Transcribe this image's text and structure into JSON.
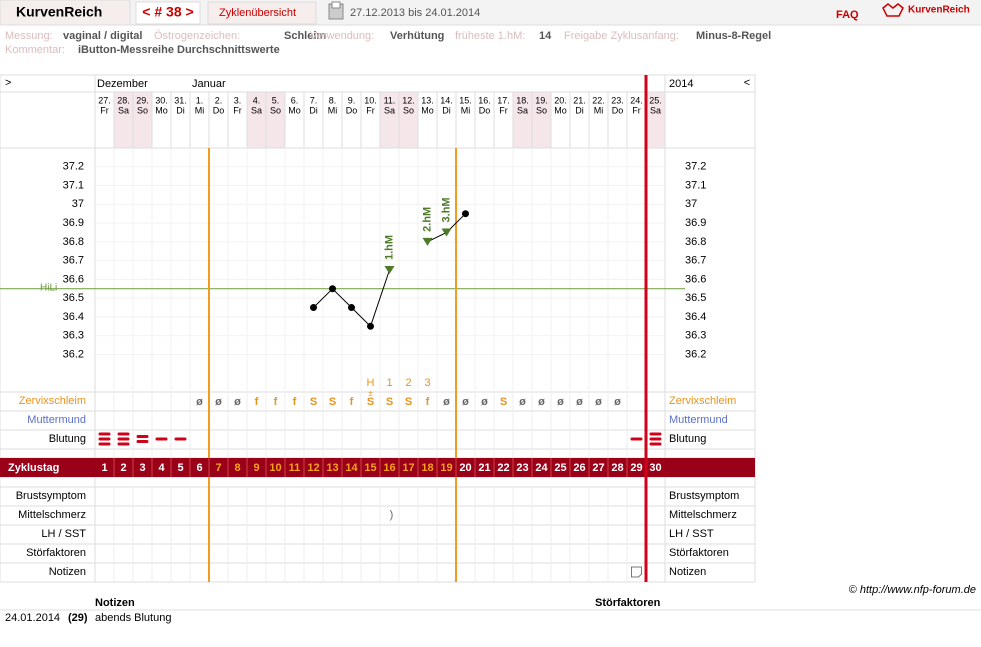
{
  "header": {
    "brand": "KurvenReich",
    "cycle_nav": "< # 38 >",
    "overview": "Zyklenübersicht",
    "date_range": "27.12.2013 bis 24.01.2014",
    "faq": "FAQ",
    "logo": "KurvenReich"
  },
  "info": [
    [
      {
        "label": "Messung:",
        "value": "vaginal / digital"
      },
      {
        "label": "Östrogenzeichen:",
        "value": "Schleim"
      },
      {
        "label": "Verwendung:",
        "value": "Verhütung"
      },
      {
        "label": "früheste 1.hM:",
        "value": 14
      },
      {
        "label": "Freigabe Zyklusanfang:",
        "value": "Minus-8-Regel"
      }
    ],
    [
      {
        "label": "Kommentar:",
        "value": "iButton-Messreihe Durchschnittswerte"
      }
    ]
  ],
  "grid": {
    "nav_left": ">",
    "nav_right": "<",
    "year": "2014",
    "months": [
      {
        "label": "Dezember",
        "day": 1
      },
      {
        "label": "Januar",
        "day": 6
      }
    ],
    "dates": [
      "27.",
      "28.",
      "29.",
      "30.",
      "31.",
      "1.",
      "2.",
      "3.",
      "4.",
      "5.",
      "6.",
      "7.",
      "8.",
      "9.",
      "10.",
      "11.",
      "12.",
      "13.",
      "14.",
      "15.",
      "16.",
      "17.",
      "18.",
      "19.",
      "20.",
      "21.",
      "22.",
      "23.",
      "24.",
      "25."
    ],
    "weekdays": [
      "Fr",
      "Sa",
      "So",
      "Mo",
      "Di",
      "Mi",
      "Do",
      "Fr",
      "Sa",
      "So",
      "Mo",
      "Di",
      "Mi",
      "Do",
      "Fr",
      "Sa",
      "So",
      "Mo",
      "Di",
      "Mi",
      "Do",
      "Fr",
      "Sa",
      "So",
      "Mo",
      "Di",
      "Mi",
      "Do",
      "Fr",
      "Sa"
    ]
  },
  "row_labels": {
    "zervix": "Zervixschleim",
    "muttermund": "Muttermund",
    "blutung": "Blutung",
    "zyklustag": "Zyklustag",
    "brust": "Brustsymptom",
    "mittelschmerz": "Mittelschmerz",
    "lh": "LH / SST",
    "stoer": "Störfaktoren",
    "notizen": "Notizen"
  },
  "cycle_days": [
    1,
    2,
    3,
    4,
    5,
    6,
    7,
    8,
    9,
    10,
    11,
    12,
    13,
    14,
    15,
    16,
    17,
    18,
    19,
    20,
    21,
    22,
    23,
    24,
    25,
    26,
    27,
    28,
    29,
    30
  ],
  "fertile_days": [
    7,
    19
  ],
  "cycle_end_day": 30,
  "peak_labels": [
    {
      "day": 15,
      "label": "H"
    },
    {
      "day": 16,
      "label": "1"
    },
    {
      "day": 17,
      "label": "2"
    },
    {
      "day": 18,
      "label": "3"
    }
  ],
  "zervix": [
    null,
    null,
    null,
    null,
    null,
    "ø",
    "ø",
    "ø",
    "f",
    "f",
    "f",
    "S",
    "S",
    "f",
    "S",
    "S",
    "S",
    "f",
    "ø",
    "ø",
    "ø",
    "S",
    "ø",
    "ø",
    "ø",
    "ø",
    "ø",
    "ø",
    null,
    null
  ],
  "zervix_extra": {
    "day": 15,
    "label": "±"
  },
  "bleeding": [
    3,
    3,
    2,
    1,
    1,
    null,
    null,
    null,
    null,
    null,
    null,
    null,
    null,
    null,
    null,
    null,
    null,
    null,
    null,
    null,
    null,
    null,
    null,
    null,
    null,
    null,
    null,
    null,
    1,
    3
  ],
  "mittelschmerz": {
    "day": 16,
    "symbol": ")"
  },
  "note_icon_day": 29,
  "chart_data": {
    "type": "line",
    "color": "#000000",
    "x": [
      1,
      2,
      3,
      4,
      5,
      6,
      7,
      8,
      9,
      10,
      11,
      12,
      13,
      14,
      15,
      16,
      17,
      18,
      19,
      20,
      21,
      22,
      23,
      24,
      25,
      26,
      27,
      28,
      29,
      30
    ],
    "values": [
      null,
      null,
      null,
      null,
      null,
      null,
      null,
      null,
      null,
      null,
      null,
      36.45,
      36.55,
      36.45,
      36.35,
      36.65,
      null,
      36.8,
      36.85,
      36.95,
      null,
      null,
      null,
      null,
      null,
      null,
      null,
      null,
      null,
      null
    ],
    "ylim": [
      36.0,
      37.3
    ],
    "yticks": [
      36.2,
      36.3,
      36.4,
      36.5,
      36.6,
      36.7,
      36.8,
      36.9,
      37,
      37.1,
      37.2
    ],
    "hili": {
      "value": 36.55,
      "label": "HiLi",
      "color": "#6a9a3a"
    },
    "markers": [
      {
        "day": 16,
        "label": "1.hM"
      },
      {
        "day": 18,
        "label": "2.hM"
      },
      {
        "day": 19,
        "label": "3.hM"
      }
    ]
  },
  "footer": {
    "copyright": "© http://www.nfp-forum.de"
  },
  "notes_table": {
    "headers": [
      "Notizen",
      "Störfaktoren"
    ],
    "rows": [
      [
        "24.01.2014",
        "(29)",
        "abends Blutung"
      ]
    ]
  }
}
